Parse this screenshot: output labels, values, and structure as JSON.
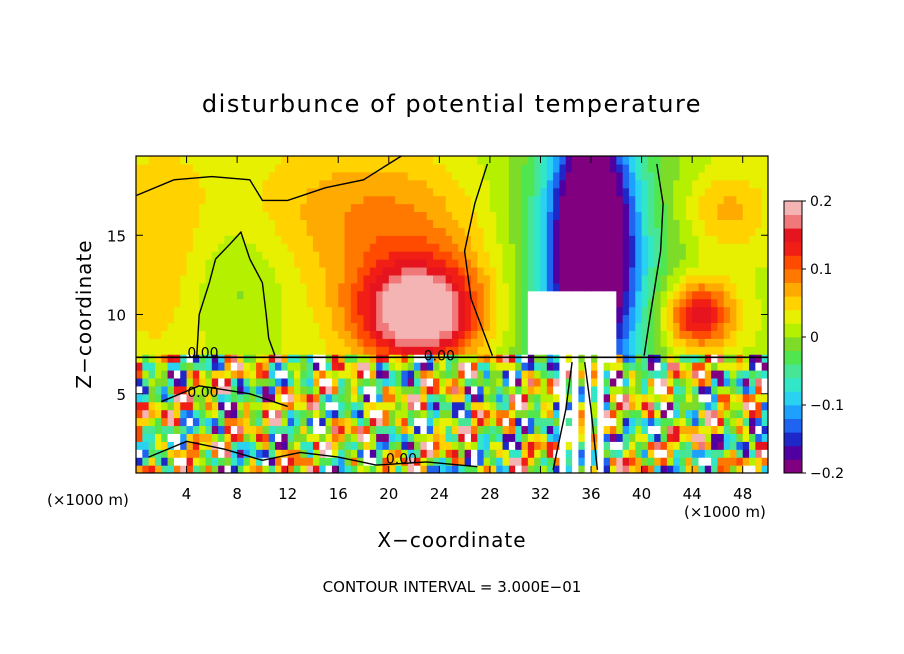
{
  "chart_data": {
    "type": "heatmap",
    "title": "disturbunce of potential temperature",
    "xlabel": "X−coordinate",
    "ylabel": "Z−coordinate",
    "x_unit_left": "(×1000 m)",
    "x_unit_right": "(×1000 m)",
    "footer": "CONTOUR INTERVAL = 3.000E−01",
    "xlim": [
      0,
      50
    ],
    "ylim": [
      0,
      20
    ],
    "x_ticks": [
      4,
      8,
      12,
      16,
      20,
      24,
      28,
      32,
      36,
      40,
      44,
      48
    ],
    "y_ticks": [
      5,
      10,
      15
    ],
    "colorbar": {
      "min": -0.2,
      "max": 0.2,
      "tick_values": [
        0.2,
        0.1,
        0,
        -0.1,
        -0.2
      ],
      "tick_labels": [
        "0.2",
        "0.1",
        "0",
        "−0.1",
        "−0.2"
      ],
      "colors": [
        "#800080",
        "#5000a0",
        "#1e28c8",
        "#1e64f0",
        "#1ea0ff",
        "#28d2f0",
        "#32e6c8",
        "#46e696",
        "#50e650",
        "#7ddc28",
        "#b4f000",
        "#e6f000",
        "#ffd200",
        "#ffaa00",
        "#ff7800",
        "#ff4b00",
        "#f01e14",
        "#e6141e",
        "#f07878",
        "#f5b4b4"
      ]
    },
    "contour_labels": [
      {
        "text": "0.00",
        "x": 5.3,
        "z": 7.3
      },
      {
        "text": "0.00",
        "x": 5.3,
        "z": 4.8
      },
      {
        "text": "0.00",
        "x": 24,
        "z": 7.1
      },
      {
        "text": "0.00",
        "x": 21,
        "z": 0.6
      }
    ],
    "upper_field": {
      "blobs": [
        {
          "x": 22.5,
          "z": 10.0,
          "sx": 3.4,
          "sz": 2.2,
          "value": 0.19
        },
        {
          "x": 22.5,
          "z": 13.5,
          "sx": 5.5,
          "sz": 4.0,
          "value": 0.06
        },
        {
          "x": 44.5,
          "z": 10.0,
          "sx": 2.0,
          "sz": 1.6,
          "value": 0.16
        },
        {
          "x": 46.5,
          "z": 16.5,
          "sx": 2.5,
          "sz": 2.0,
          "value": 0.06
        },
        {
          "x": 36,
          "z": 14.5,
          "sx": 2.3,
          "sz": 6.0,
          "value": -0.28
        },
        {
          "x": 36,
          "z": 12.0,
          "sx": 6.5,
          "sz": 8.0,
          "value": -0.07
        },
        {
          "x": 7.5,
          "z": 12.0,
          "sx": 3.0,
          "sz": 3.0,
          "value": -0.03
        },
        {
          "x": 2.0,
          "z": 14.0,
          "sx": 3.0,
          "sz": 5.0,
          "value": 0.04
        },
        {
          "x": 16.0,
          "z": 17.0,
          "sx": 6.0,
          "sz": 3.0,
          "value": 0.035
        }
      ]
    }
  }
}
